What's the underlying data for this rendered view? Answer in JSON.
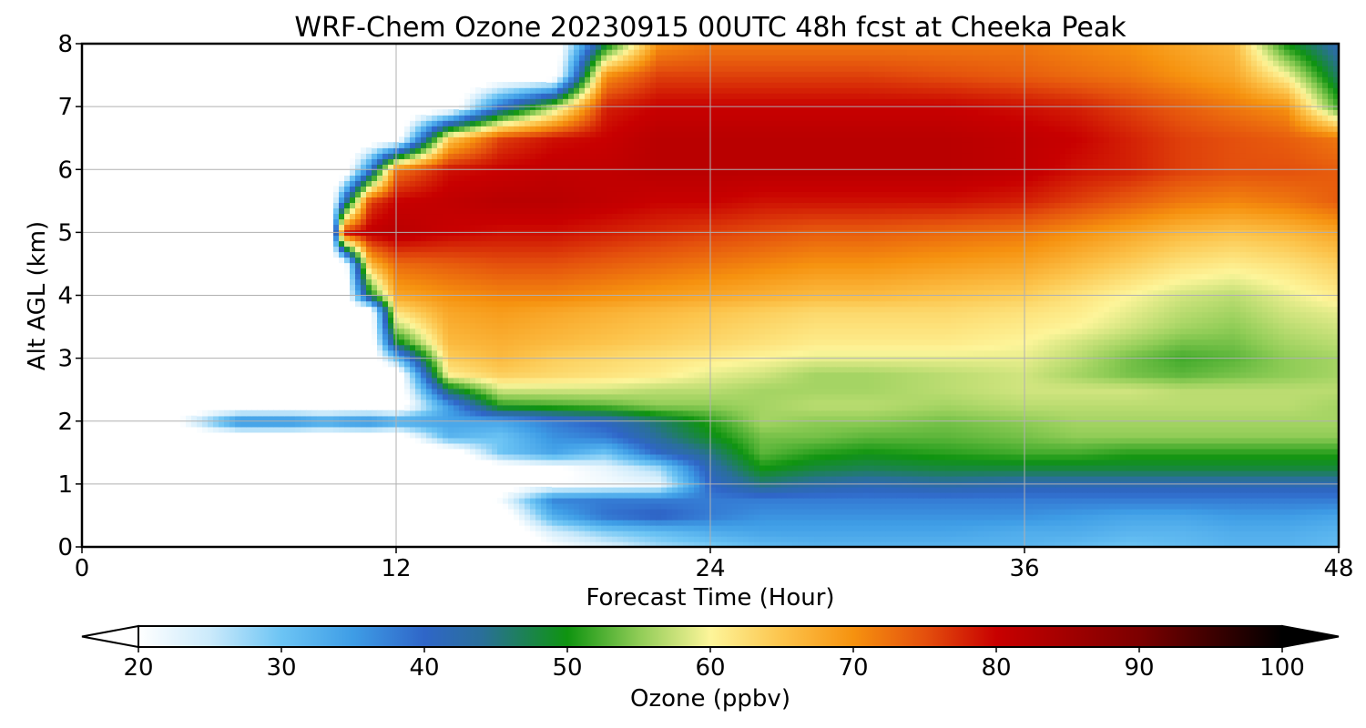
{
  "chart_data": {
    "type": "heatmap",
    "title": "WRF-Chem Ozone  20230915 00UTC 48h fcst at Cheeka Peak",
    "xlabel": "Forecast Time (Hour)",
    "ylabel": "Alt AGL (km)",
    "xlim": [
      0,
      48
    ],
    "ylim": [
      0,
      8
    ],
    "x_ticks": [
      "0",
      "12",
      "24",
      "36",
      "48"
    ],
    "y_ticks": [
      "0",
      "1",
      "2",
      "3",
      "4",
      "5",
      "6",
      "7",
      "8"
    ],
    "grid": true,
    "colorbar": {
      "label": "Ozone  (ppbv)",
      "min": 20,
      "max": 100,
      "ticks": [
        "20",
        "30",
        "40",
        "50",
        "60",
        "70",
        "80",
        "90",
        "100"
      ],
      "extend": "both",
      "stops": [
        {
          "value": 20,
          "color": "#ffffff"
        },
        {
          "value": 25,
          "color": "#cbeafb"
        },
        {
          "value": 30,
          "color": "#6cc4f4"
        },
        {
          "value": 35,
          "color": "#3e9de6"
        },
        {
          "value": 40,
          "color": "#2f66c8"
        },
        {
          "value": 44,
          "color": "#2a6f9a"
        },
        {
          "value": 50,
          "color": "#0f9410"
        },
        {
          "value": 55,
          "color": "#8fcc56"
        },
        {
          "value": 60,
          "color": "#fdf59a"
        },
        {
          "value": 65,
          "color": "#fcc44c"
        },
        {
          "value": 70,
          "color": "#f6920f"
        },
        {
          "value": 75,
          "color": "#e4500d"
        },
        {
          "value": 80,
          "color": "#c80000"
        },
        {
          "value": 90,
          "color": "#7c0000"
        },
        {
          "value": 100,
          "color": "#000000"
        }
      ]
    },
    "field": {
      "x": [
        0,
        3,
        6,
        8,
        9,
        9.5,
        10,
        11,
        12,
        14,
        16,
        18,
        20,
        22,
        24,
        26,
        28,
        30,
        33,
        36,
        38,
        40,
        42,
        44,
        46,
        48
      ],
      "y": [
        0,
        0.25,
        0.5,
        0.75,
        1,
        1.25,
        1.5,
        1.75,
        2,
        2.25,
        2.5,
        2.75,
        3,
        3.25,
        3.5,
        3.75,
        4,
        4.5,
        5,
        5.5,
        6,
        6.5,
        7,
        7.5,
        8
      ],
      "z": [
        [
          15,
          15,
          15,
          15,
          15,
          15,
          15,
          15,
          15,
          15,
          15,
          20,
          23,
          27,
          29,
          31,
          32,
          32,
          32,
          32,
          31,
          30,
          31,
          32,
          32,
          31
        ],
        [
          15,
          15,
          15,
          15,
          15,
          15,
          15,
          15,
          15,
          15,
          15,
          24,
          29,
          31,
          33,
          34,
          34,
          34,
          34,
          33,
          33,
          32,
          32,
          33,
          33,
          32
        ],
        [
          15,
          15,
          15,
          15,
          15,
          15,
          15,
          15,
          15,
          15,
          16,
          33,
          39,
          41,
          38,
          36,
          36,
          36,
          36,
          36,
          35,
          34,
          34,
          35,
          35,
          34
        ],
        [
          15,
          15,
          15,
          15,
          15,
          15,
          15,
          15,
          15,
          15,
          21,
          37,
          38,
          38,
          38,
          38,
          38,
          38,
          38,
          38,
          38,
          38,
          38,
          38,
          38,
          38
        ],
        [
          15,
          15,
          15,
          15,
          15,
          15,
          15,
          15,
          15,
          15,
          17,
          20,
          21,
          22,
          40,
          45,
          43,
          42,
          43,
          42,
          42,
          42,
          42,
          42,
          42,
          42
        ],
        [
          15,
          15,
          15,
          15,
          15,
          15,
          15,
          15,
          15,
          15,
          16,
          19,
          22,
          27,
          42,
          50,
          48,
          47,
          48,
          48,
          48,
          48,
          48,
          48,
          48,
          48
        ],
        [
          15,
          15,
          15,
          15,
          15,
          15,
          15,
          15,
          15,
          15,
          30,
          34,
          30,
          40,
          45,
          53,
          51,
          50,
          51,
          52,
          52,
          51,
          51,
          51,
          51,
          51
        ],
        [
          15,
          15,
          15,
          15,
          15,
          15,
          15,
          15,
          15,
          32,
          30,
          36,
          38,
          44,
          49,
          54,
          54,
          53,
          53,
          54,
          55,
          55,
          55,
          55,
          55,
          55
        ],
        [
          15,
          15,
          38,
          38,
          36,
          36,
          37,
          38,
          35,
          34,
          34,
          38,
          41,
          46,
          51,
          56,
          55,
          55,
          54,
          55,
          56,
          56,
          56,
          56,
          56,
          56
        ],
        [
          15,
          15,
          15,
          15,
          15,
          15,
          15,
          15,
          15,
          35,
          51,
          52,
          53,
          55,
          55,
          56,
          57,
          57,
          56,
          57,
          57,
          57,
          57,
          57,
          57,
          56
        ],
        [
          15,
          15,
          15,
          15,
          15,
          15,
          15,
          15,
          15,
          47,
          58,
          58,
          58,
          57,
          57,
          56,
          56,
          56,
          57,
          58,
          58,
          58,
          57,
          57,
          57,
          57
        ],
        [
          15,
          15,
          15,
          15,
          15,
          15,
          15,
          15,
          15,
          61,
          64,
          63,
          62,
          61,
          59,
          58,
          56,
          56,
          57,
          58,
          56,
          54,
          53,
          54,
          55,
          56
        ],
        [
          15,
          15,
          15,
          15,
          15,
          15,
          15,
          15,
          30,
          64,
          66,
          64,
          63,
          62,
          61,
          60,
          59,
          59,
          59,
          59,
          57,
          54,
          52,
          53,
          55,
          56
        ],
        [
          15,
          15,
          15,
          15,
          15,
          15,
          15,
          15,
          48,
          66,
          67,
          66,
          65,
          64,
          63,
          62,
          61,
          61,
          61,
          60,
          58,
          56,
          54,
          54,
          56,
          57
        ],
        [
          15,
          15,
          15,
          15,
          15,
          15,
          15,
          15,
          56,
          67,
          68,
          67,
          66,
          65,
          64,
          63,
          62,
          62,
          62,
          61,
          60,
          58,
          56,
          55,
          57,
          58
        ],
        [
          15,
          15,
          15,
          15,
          15,
          15,
          15,
          15,
          62,
          68,
          69,
          68,
          67,
          66,
          65,
          64,
          63,
          63,
          63,
          62,
          61,
          59,
          57,
          56,
          58,
          59
        ],
        [
          15,
          15,
          15,
          15,
          15,
          15,
          15,
          48,
          68,
          70,
          71,
          71,
          70,
          69,
          68,
          67,
          66,
          66,
          65,
          64,
          62,
          60,
          58,
          57,
          59,
          61
        ],
        [
          15,
          15,
          15,
          15,
          15,
          15,
          15,
          66,
          73,
          74,
          75,
          75,
          74,
          73,
          72,
          71,
          70,
          70,
          69,
          68,
          66,
          64,
          62,
          61,
          62,
          64
        ],
        [
          15,
          15,
          15,
          15,
          15,
          15,
          78,
          81,
          82,
          80,
          79,
          79,
          78,
          77,
          76,
          75,
          74,
          74,
          73,
          72,
          70,
          68,
          66,
          65,
          66,
          68
        ],
        [
          15,
          15,
          15,
          15,
          15,
          15,
          40,
          76,
          80,
          81,
          82,
          82,
          81,
          80,
          80,
          79,
          79,
          79,
          79,
          78,
          76,
          74,
          72,
          71,
          72,
          74
        ],
        [
          15,
          15,
          15,
          15,
          15,
          15,
          15,
          38,
          72,
          79,
          80,
          81,
          81,
          82,
          82,
          82,
          82,
          82,
          82,
          81,
          79,
          78,
          76,
          75,
          75,
          74
        ],
        [
          15,
          15,
          15,
          15,
          15,
          15,
          15,
          15,
          15,
          64,
          76,
          79,
          80,
          82,
          82,
          82,
          82,
          82,
          82,
          81,
          80,
          78,
          76,
          75,
          74,
          72
        ],
        [
          15,
          15,
          15,
          15,
          15,
          15,
          15,
          15,
          15,
          15,
          40,
          56,
          78,
          80,
          80,
          80,
          80,
          80,
          80,
          79,
          78,
          76,
          74,
          72,
          70,
          52
        ],
        [
          15,
          15,
          15,
          15,
          15,
          15,
          15,
          15,
          15,
          15,
          15,
          15,
          70,
          76,
          76,
          76,
          76,
          76,
          75,
          74,
          73,
          72,
          70,
          68,
          60,
          46
        ],
        [
          15,
          15,
          15,
          15,
          15,
          15,
          15,
          15,
          15,
          15,
          15,
          15,
          48,
          70,
          72,
          72,
          72,
          72,
          72,
          72,
          71,
          70,
          68,
          66,
          50,
          42
        ]
      ]
    }
  }
}
